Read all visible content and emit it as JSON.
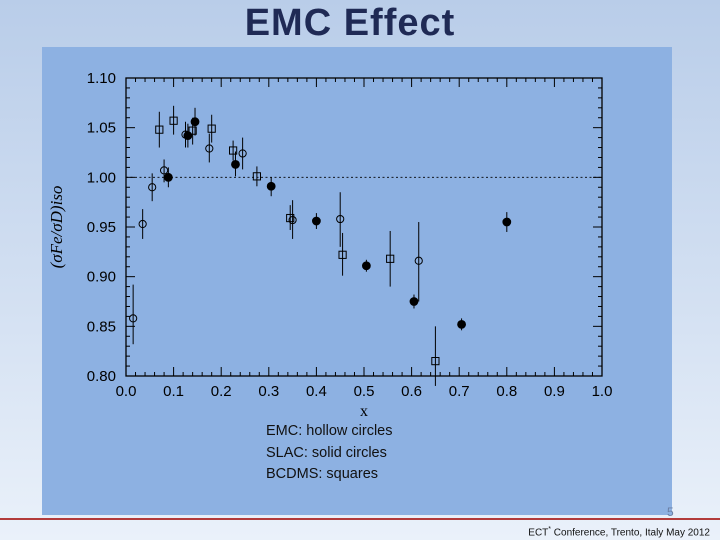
{
  "slide": {
    "title": "EMC Effect",
    "caption_lines": [
      "EMC: hollow circles",
      "SLAC:  solid circles",
      "BCDMS: squares"
    ],
    "page_number": "5",
    "footer_prefix": "ECT",
    "footer_sup": "*",
    "footer_suffix": " Conference, Trento, Italy May 2012"
  },
  "colors": {
    "panel": "#8db1e2",
    "title": "#1f2a55",
    "footer_rule": "#b23b3b"
  },
  "chart_data": {
    "type": "scatter",
    "xlabel": "x",
    "ylabel": "(σFe/σD)iso",
    "xlim": [
      0.0,
      1.0
    ],
    "ylim": [
      0.8,
      1.1
    ],
    "x_ticks": [
      "0.0",
      "0.1",
      "0.2",
      "0.3",
      "0.4",
      "0.5",
      "0.6",
      "0.7",
      "0.8",
      "0.9",
      "1.0"
    ],
    "y_ticks": [
      "0.80",
      "0.85",
      "0.90",
      "0.95",
      "1.00",
      "1.05",
      "1.10"
    ],
    "reference_line": 1.0,
    "series": [
      {
        "name": "EMC",
        "marker": "hollow-circle",
        "points": [
          {
            "x": 0.015,
            "y": 0.858,
            "lo": 0.832,
            "hi": 0.892
          },
          {
            "x": 0.035,
            "y": 0.953,
            "lo": 0.938,
            "hi": 0.968
          },
          {
            "x": 0.055,
            "y": 0.99,
            "lo": 0.976,
            "hi": 1.004
          },
          {
            "x": 0.08,
            "y": 1.007,
            "lo": 0.995,
            "hi": 1.018
          },
          {
            "x": 0.125,
            "y": 1.043,
            "lo": 1.03,
            "hi": 1.056
          },
          {
            "x": 0.175,
            "y": 1.029,
            "lo": 1.015,
            "hi": 1.044
          },
          {
            "x": 0.245,
            "y": 1.024,
            "lo": 1.008,
            "hi": 1.04
          },
          {
            "x": 0.35,
            "y": 0.957,
            "lo": 0.938,
            "hi": 0.977
          },
          {
            "x": 0.45,
            "y": 0.958,
            "lo": 0.93,
            "hi": 0.985
          },
          {
            "x": 0.615,
            "y": 0.916,
            "lo": 0.875,
            "hi": 0.955
          }
        ]
      },
      {
        "name": "SLAC",
        "marker": "solid-circle",
        "points": [
          {
            "x": 0.089,
            "y": 1.0,
            "lo": 0.99,
            "hi": 1.01
          },
          {
            "x": 0.13,
            "y": 1.042,
            "lo": 1.03,
            "hi": 1.054
          },
          {
            "x": 0.145,
            "y": 1.056,
            "lo": 1.042,
            "hi": 1.07
          },
          {
            "x": 0.23,
            "y": 1.013,
            "lo": 1.001,
            "hi": 1.026
          },
          {
            "x": 0.305,
            "y": 0.991,
            "lo": 0.981,
            "hi": 1.0
          },
          {
            "x": 0.4,
            "y": 0.956,
            "lo": 0.948,
            "hi": 0.964
          },
          {
            "x": 0.505,
            "y": 0.911,
            "lo": 0.905,
            "hi": 0.917
          },
          {
            "x": 0.605,
            "y": 0.875,
            "lo": 0.868,
            "hi": 0.882
          },
          {
            "x": 0.705,
            "y": 0.852,
            "lo": 0.846,
            "hi": 0.858
          },
          {
            "x": 0.8,
            "y": 0.955,
            "lo": 0.945,
            "hi": 0.965
          }
        ]
      },
      {
        "name": "BCDMS",
        "marker": "square",
        "points": [
          {
            "x": 0.07,
            "y": 1.048,
            "lo": 1.03,
            "hi": 1.066
          },
          {
            "x": 0.1,
            "y": 1.057,
            "lo": 1.043,
            "hi": 1.072
          },
          {
            "x": 0.14,
            "y": 1.047,
            "lo": 1.033,
            "hi": 1.06
          },
          {
            "x": 0.18,
            "y": 1.049,
            "lo": 1.035,
            "hi": 1.063
          },
          {
            "x": 0.225,
            "y": 1.027,
            "lo": 1.017,
            "hi": 1.037
          },
          {
            "x": 0.275,
            "y": 1.001,
            "lo": 0.991,
            "hi": 1.011
          },
          {
            "x": 0.345,
            "y": 0.959,
            "lo": 0.947,
            "hi": 0.972
          },
          {
            "x": 0.455,
            "y": 0.922,
            "lo": 0.901,
            "hi": 0.944
          },
          {
            "x": 0.555,
            "y": 0.918,
            "lo": 0.89,
            "hi": 0.946
          },
          {
            "x": 0.65,
            "y": 0.815,
            "lo": 0.79,
            "hi": 0.85
          }
        ]
      }
    ]
  }
}
